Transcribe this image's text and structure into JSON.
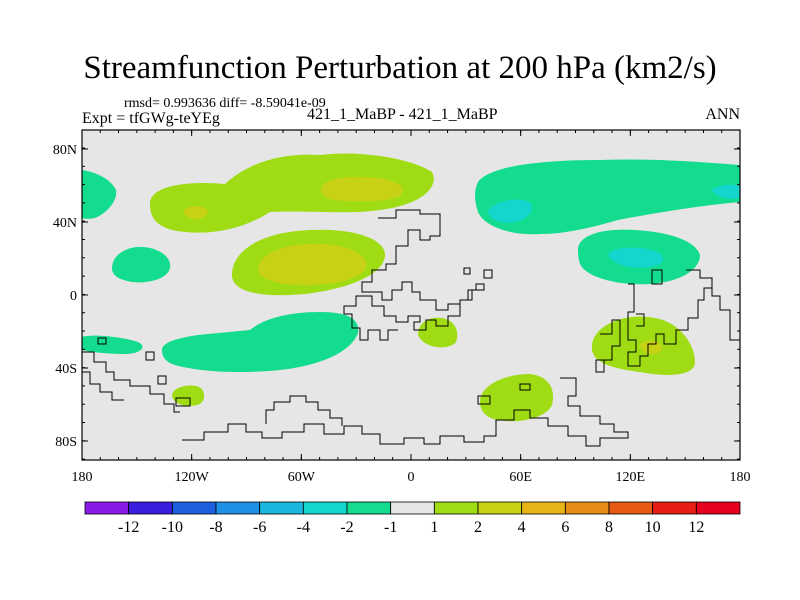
{
  "title": "Streamfunction Perturbation at 200 hPa (km2/s)",
  "stats_line": "rmsd= 0.993636 diff= -8.59041e-09",
  "experiment_line": "Expt = tfGWg-teYEg",
  "case_line": "421_1_MaBP - 421_1_MaBP",
  "season": "ANN",
  "y_ticks": [
    "80N",
    "40N",
    "0",
    "40S",
    "80S"
  ],
  "x_ticks": [
    "180",
    "120W",
    "60W",
    "0",
    "60E",
    "120E",
    "180"
  ],
  "colorbar": {
    "labels": [
      "-12",
      "-10",
      "-8",
      "-6",
      "-4",
      "-2",
      "-1",
      "1",
      "2",
      "4",
      "6",
      "8",
      "10",
      "12"
    ],
    "colors": [
      "#8a1ae6",
      "#3b1fe0",
      "#1e5fe0",
      "#1e90e6",
      "#1ab6e0",
      "#14d6cc",
      "#14dc8e",
      "#e6e6e6",
      "#a0dc14",
      "#c8d214",
      "#e6b414",
      "#e68c14",
      "#e65a14",
      "#e61e14",
      "#e6001e"
    ]
  },
  "field_colors": {
    "background": "#e6e6e6",
    "neg_1_2": "#14dc8e",
    "neg_2_4": "#14d6cc",
    "neg_4_6": "#1ab6e0",
    "pos_1_2": "#a0dc14",
    "pos_2_4": "#c8d214"
  }
}
